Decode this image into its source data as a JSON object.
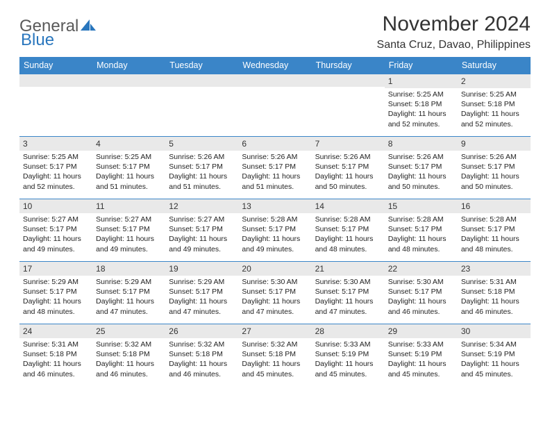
{
  "logo": {
    "text1": "General",
    "text2": "Blue"
  },
  "title": "November 2024",
  "location": "Santa Cruz, Davao, Philippines",
  "colors": {
    "header_bg": "#3a85c8",
    "header_fg": "#ffffff",
    "daynum_bg": "#e9e9e9",
    "border": "#3a85c8",
    "logo_blue": "#2976bd",
    "logo_gray": "#5a5a5a"
  },
  "typography": {
    "title_fontsize": 30,
    "location_fontsize": 16,
    "dayheader_fontsize": 12.5,
    "daynum_fontsize": 12,
    "body_fontsize": 10.5
  },
  "layout": {
    "columns": 7,
    "rows": 5,
    "col_width_pct": 14.285
  },
  "day_headers": [
    "Sunday",
    "Monday",
    "Tuesday",
    "Wednesday",
    "Thursday",
    "Friday",
    "Saturday"
  ],
  "weeks": [
    [
      {
        "day": "",
        "sunrise": "",
        "sunset": "",
        "daylight": ""
      },
      {
        "day": "",
        "sunrise": "",
        "sunset": "",
        "daylight": ""
      },
      {
        "day": "",
        "sunrise": "",
        "sunset": "",
        "daylight": ""
      },
      {
        "day": "",
        "sunrise": "",
        "sunset": "",
        "daylight": ""
      },
      {
        "day": "",
        "sunrise": "",
        "sunset": "",
        "daylight": ""
      },
      {
        "day": "1",
        "sunrise": "Sunrise: 5:25 AM",
        "sunset": "Sunset: 5:18 PM",
        "daylight": "Daylight: 11 hours and 52 minutes."
      },
      {
        "day": "2",
        "sunrise": "Sunrise: 5:25 AM",
        "sunset": "Sunset: 5:18 PM",
        "daylight": "Daylight: 11 hours and 52 minutes."
      }
    ],
    [
      {
        "day": "3",
        "sunrise": "Sunrise: 5:25 AM",
        "sunset": "Sunset: 5:17 PM",
        "daylight": "Daylight: 11 hours and 52 minutes."
      },
      {
        "day": "4",
        "sunrise": "Sunrise: 5:25 AM",
        "sunset": "Sunset: 5:17 PM",
        "daylight": "Daylight: 11 hours and 51 minutes."
      },
      {
        "day": "5",
        "sunrise": "Sunrise: 5:26 AM",
        "sunset": "Sunset: 5:17 PM",
        "daylight": "Daylight: 11 hours and 51 minutes."
      },
      {
        "day": "6",
        "sunrise": "Sunrise: 5:26 AM",
        "sunset": "Sunset: 5:17 PM",
        "daylight": "Daylight: 11 hours and 51 minutes."
      },
      {
        "day": "7",
        "sunrise": "Sunrise: 5:26 AM",
        "sunset": "Sunset: 5:17 PM",
        "daylight": "Daylight: 11 hours and 50 minutes."
      },
      {
        "day": "8",
        "sunrise": "Sunrise: 5:26 AM",
        "sunset": "Sunset: 5:17 PM",
        "daylight": "Daylight: 11 hours and 50 minutes."
      },
      {
        "day": "9",
        "sunrise": "Sunrise: 5:26 AM",
        "sunset": "Sunset: 5:17 PM",
        "daylight": "Daylight: 11 hours and 50 minutes."
      }
    ],
    [
      {
        "day": "10",
        "sunrise": "Sunrise: 5:27 AM",
        "sunset": "Sunset: 5:17 PM",
        "daylight": "Daylight: 11 hours and 49 minutes."
      },
      {
        "day": "11",
        "sunrise": "Sunrise: 5:27 AM",
        "sunset": "Sunset: 5:17 PM",
        "daylight": "Daylight: 11 hours and 49 minutes."
      },
      {
        "day": "12",
        "sunrise": "Sunrise: 5:27 AM",
        "sunset": "Sunset: 5:17 PM",
        "daylight": "Daylight: 11 hours and 49 minutes."
      },
      {
        "day": "13",
        "sunrise": "Sunrise: 5:28 AM",
        "sunset": "Sunset: 5:17 PM",
        "daylight": "Daylight: 11 hours and 49 minutes."
      },
      {
        "day": "14",
        "sunrise": "Sunrise: 5:28 AM",
        "sunset": "Sunset: 5:17 PM",
        "daylight": "Daylight: 11 hours and 48 minutes."
      },
      {
        "day": "15",
        "sunrise": "Sunrise: 5:28 AM",
        "sunset": "Sunset: 5:17 PM",
        "daylight": "Daylight: 11 hours and 48 minutes."
      },
      {
        "day": "16",
        "sunrise": "Sunrise: 5:28 AM",
        "sunset": "Sunset: 5:17 PM",
        "daylight": "Daylight: 11 hours and 48 minutes."
      }
    ],
    [
      {
        "day": "17",
        "sunrise": "Sunrise: 5:29 AM",
        "sunset": "Sunset: 5:17 PM",
        "daylight": "Daylight: 11 hours and 48 minutes."
      },
      {
        "day": "18",
        "sunrise": "Sunrise: 5:29 AM",
        "sunset": "Sunset: 5:17 PM",
        "daylight": "Daylight: 11 hours and 47 minutes."
      },
      {
        "day": "19",
        "sunrise": "Sunrise: 5:29 AM",
        "sunset": "Sunset: 5:17 PM",
        "daylight": "Daylight: 11 hours and 47 minutes."
      },
      {
        "day": "20",
        "sunrise": "Sunrise: 5:30 AM",
        "sunset": "Sunset: 5:17 PM",
        "daylight": "Daylight: 11 hours and 47 minutes."
      },
      {
        "day": "21",
        "sunrise": "Sunrise: 5:30 AM",
        "sunset": "Sunset: 5:17 PM",
        "daylight": "Daylight: 11 hours and 47 minutes."
      },
      {
        "day": "22",
        "sunrise": "Sunrise: 5:30 AM",
        "sunset": "Sunset: 5:17 PM",
        "daylight": "Daylight: 11 hours and 46 minutes."
      },
      {
        "day": "23",
        "sunrise": "Sunrise: 5:31 AM",
        "sunset": "Sunset: 5:18 PM",
        "daylight": "Daylight: 11 hours and 46 minutes."
      }
    ],
    [
      {
        "day": "24",
        "sunrise": "Sunrise: 5:31 AM",
        "sunset": "Sunset: 5:18 PM",
        "daylight": "Daylight: 11 hours and 46 minutes."
      },
      {
        "day": "25",
        "sunrise": "Sunrise: 5:32 AM",
        "sunset": "Sunset: 5:18 PM",
        "daylight": "Daylight: 11 hours and 46 minutes."
      },
      {
        "day": "26",
        "sunrise": "Sunrise: 5:32 AM",
        "sunset": "Sunset: 5:18 PM",
        "daylight": "Daylight: 11 hours and 46 minutes."
      },
      {
        "day": "27",
        "sunrise": "Sunrise: 5:32 AM",
        "sunset": "Sunset: 5:18 PM",
        "daylight": "Daylight: 11 hours and 45 minutes."
      },
      {
        "day": "28",
        "sunrise": "Sunrise: 5:33 AM",
        "sunset": "Sunset: 5:19 PM",
        "daylight": "Daylight: 11 hours and 45 minutes."
      },
      {
        "day": "29",
        "sunrise": "Sunrise: 5:33 AM",
        "sunset": "Sunset: 5:19 PM",
        "daylight": "Daylight: 11 hours and 45 minutes."
      },
      {
        "day": "30",
        "sunrise": "Sunrise: 5:34 AM",
        "sunset": "Sunset: 5:19 PM",
        "daylight": "Daylight: 11 hours and 45 minutes."
      }
    ]
  ]
}
